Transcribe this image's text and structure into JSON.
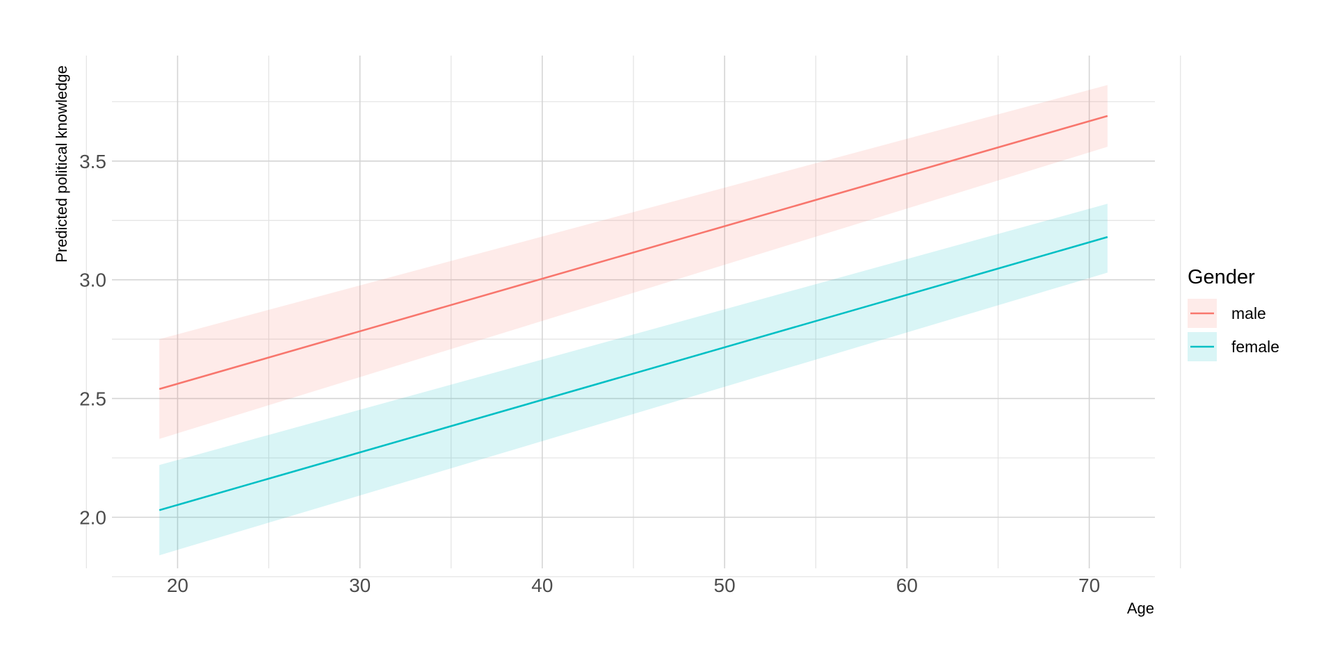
{
  "chart_data": {
    "type": "line",
    "title": "",
    "xlabel": "Age",
    "ylabel": "Predicted political knowledge",
    "xlim": [
      16.4,
      73.6
    ],
    "ylim": [
      1.785,
      3.944
    ],
    "x_ticks": [
      20,
      30,
      40,
      50,
      60,
      70
    ],
    "x_tick_labels": [
      "20",
      "30",
      "40",
      "50",
      "60",
      "70"
    ],
    "y_ticks": [
      2.0,
      2.5,
      3.0,
      3.5
    ],
    "y_tick_labels": [
      "2.0",
      "2.5",
      "3.0",
      "3.5"
    ],
    "grid": true,
    "legend": {
      "title": "Gender",
      "position": "right"
    },
    "series": [
      {
        "name": "male",
        "color": "#F8766D",
        "x": [
          19,
          71
        ],
        "y": [
          2.54,
          3.69
        ],
        "ci_lower": [
          2.33,
          3.56
        ],
        "ci_upper": [
          2.75,
          3.82
        ]
      },
      {
        "name": "female",
        "color": "#00BFC4",
        "x": [
          19,
          71
        ],
        "y": [
          2.03,
          3.18
        ],
        "ci_lower": [
          1.84,
          3.03
        ],
        "ci_upper": [
          2.22,
          3.32
        ]
      }
    ]
  }
}
